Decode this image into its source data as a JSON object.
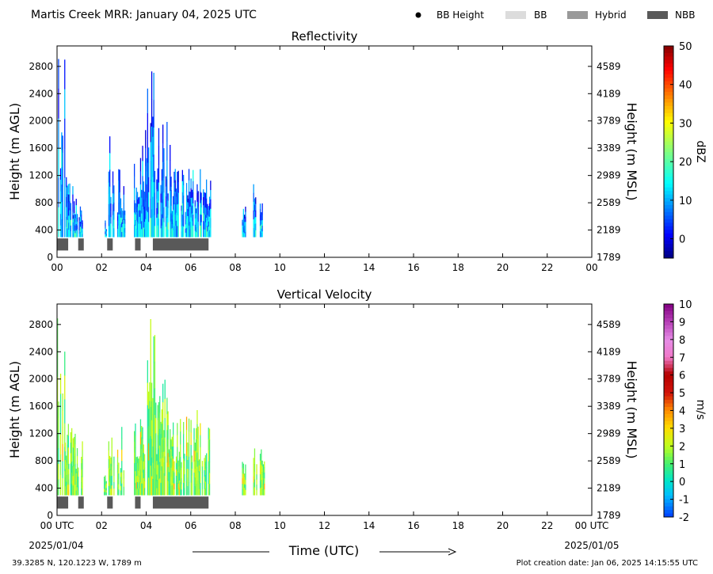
{
  "header": {
    "title": "Martis Creek MRR:  January 04, 2025 UTC",
    "legend": [
      {
        "label": "BB Height",
        "color": "#000000",
        "kind": "dot"
      },
      {
        "label": "BB",
        "color": "#dcdcdc",
        "kind": "box"
      },
      {
        "label": "Hybrid",
        "color": "#999999",
        "kind": "box"
      },
      {
        "label": "NBB",
        "color": "#595959",
        "kind": "box"
      }
    ]
  },
  "footer": {
    "location": "39.3285 N, 120.1223 W, 1789 m",
    "creation": "Plot creation date: Jan 06, 2025 14:15:55 UTC",
    "time_label": "Time (UTC)",
    "start_date": "2025/01/04",
    "end_date": "2025/01/05"
  },
  "chart_data": [
    {
      "type": "heatmap",
      "title": "Reflectivity",
      "ylabel": "Height (m AGL)",
      "ylabel_right": "Height (m MSL)",
      "x_ticks": [
        "00",
        "02",
        "04",
        "06",
        "08",
        "10",
        "12",
        "14",
        "16",
        "18",
        "20",
        "22",
        "00"
      ],
      "xlim_hours": [
        0,
        24
      ],
      "ylim": [
        0,
        3100
      ],
      "y_ticks": [
        0,
        400,
        800,
        1200,
        1600,
        2000,
        2400,
        2800
      ],
      "y_ticks_right": [
        "1789",
        "2189",
        "2589",
        "2989",
        "3389",
        "3789",
        "4189",
        "4589"
      ],
      "colorbar": {
        "label": "dBZ",
        "min": -5,
        "max": 50,
        "ticks": [
          "0",
          "10",
          "20",
          "30",
          "40",
          "50"
        ],
        "tick_values": [
          0,
          10,
          20,
          30,
          40,
          50
        ],
        "colormap": "jet"
      },
      "echo_columns": [
        {
          "start": 0.0,
          "end": 0.35,
          "top": 3000
        },
        {
          "start": 0.35,
          "end": 0.5,
          "top": 1500
        },
        {
          "start": 0.5,
          "end": 0.7,
          "top": 1300
        },
        {
          "start": 0.7,
          "end": 1.15,
          "top": 900
        },
        {
          "start": 2.05,
          "end": 2.2,
          "top": 600
        },
        {
          "start": 2.3,
          "end": 2.55,
          "top": 1800
        },
        {
          "start": 2.7,
          "end": 3.05,
          "top": 1300
        },
        {
          "start": 3.45,
          "end": 3.95,
          "top": 1700
        },
        {
          "start": 3.95,
          "end": 4.45,
          "top": 3000
        },
        {
          "start": 4.45,
          "end": 5.1,
          "top": 2000
        },
        {
          "start": 5.1,
          "end": 5.9,
          "top": 1300
        },
        {
          "start": 5.9,
          "end": 6.9,
          "top": 1400
        },
        {
          "start": 8.3,
          "end": 8.45,
          "top": 1000
        },
        {
          "start": 8.8,
          "end": 8.95,
          "top": 1100
        },
        {
          "start": 9.1,
          "end": 9.3,
          "top": 1000
        }
      ],
      "nbb_periods": [
        [
          0.0,
          0.5
        ],
        [
          0.95,
          1.2
        ],
        [
          2.25,
          2.5
        ],
        [
          3.5,
          3.75
        ],
        [
          4.3,
          6.8
        ]
      ],
      "nbb_band": [
        100,
        300
      ]
    },
    {
      "type": "heatmap",
      "title": "Vertical Velocity",
      "ylabel": "Height (m AGL)",
      "ylabel_right": "Height (m MSL)",
      "x_ticks": [
        "00 UTC",
        "02",
        "04",
        "06",
        "08",
        "10",
        "12",
        "14",
        "16",
        "18",
        "20",
        "22",
        "00 UTC"
      ],
      "xlim_hours": [
        0,
        24
      ],
      "ylim": [
        0,
        3100
      ],
      "y_ticks": [
        0,
        400,
        800,
        1200,
        1600,
        2000,
        2400,
        2800
      ],
      "y_ticks_right": [
        "1789",
        "2189",
        "2589",
        "2989",
        "3389",
        "3789",
        "4189",
        "4589"
      ],
      "colorbar": {
        "label": "m/s",
        "min": -2,
        "max": 10,
        "ticks": [
          "-2",
          "-1",
          "0",
          "1",
          "2",
          "3",
          "4",
          "5",
          "6",
          "7",
          "8",
          "9",
          "10"
        ],
        "tick_values": [
          -2,
          -1,
          0,
          1,
          2,
          3,
          4,
          5,
          6,
          7,
          8,
          9,
          10
        ],
        "colormap": "velocity"
      },
      "echo_columns": [
        {
          "start": 0.0,
          "end": 0.35,
          "top": 3000
        },
        {
          "start": 0.35,
          "end": 0.5,
          "top": 1500
        },
        {
          "start": 0.5,
          "end": 0.7,
          "top": 1300
        },
        {
          "start": 0.7,
          "end": 1.15,
          "top": 1300
        },
        {
          "start": 2.05,
          "end": 2.2,
          "top": 600
        },
        {
          "start": 2.3,
          "end": 2.55,
          "top": 1600
        },
        {
          "start": 2.7,
          "end": 3.05,
          "top": 1300
        },
        {
          "start": 3.45,
          "end": 3.95,
          "top": 1700
        },
        {
          "start": 3.95,
          "end": 4.45,
          "top": 3000
        },
        {
          "start": 4.45,
          "end": 5.1,
          "top": 2000
        },
        {
          "start": 5.1,
          "end": 5.9,
          "top": 1500
        },
        {
          "start": 5.9,
          "end": 6.9,
          "top": 1600
        },
        {
          "start": 8.3,
          "end": 8.45,
          "top": 1000
        },
        {
          "start": 8.8,
          "end": 8.95,
          "top": 1100
        },
        {
          "start": 9.1,
          "end": 9.3,
          "top": 1000
        }
      ],
      "nbb_periods": [
        [
          0.0,
          0.5
        ],
        [
          0.95,
          1.2
        ],
        [
          2.25,
          2.5
        ],
        [
          3.5,
          3.75
        ],
        [
          4.3,
          6.8
        ]
      ],
      "nbb_band": [
        100,
        300
      ]
    }
  ]
}
